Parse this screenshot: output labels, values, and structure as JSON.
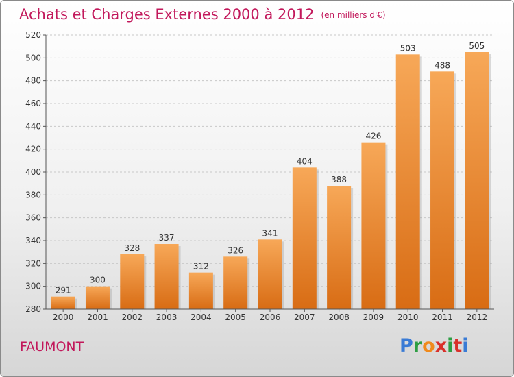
{
  "title": "Achats et Charges Externes 2000 à 2012",
  "subtitle": "(en milliers d'€)",
  "place": "FAUMONT",
  "brand": {
    "letters": [
      "P",
      "r",
      "o",
      "x",
      "i",
      "t",
      "i"
    ],
    "colors": [
      "#3a7bd5",
      "#2e9e44",
      "#f08a1c",
      "#d9302a",
      "#2e9e44",
      "#d9302a",
      "#3a7bd5"
    ]
  },
  "chart_data": {
    "type": "bar",
    "categories": [
      "2000",
      "2001",
      "2002",
      "2003",
      "2004",
      "2005",
      "2006",
      "2007",
      "2008",
      "2009",
      "2010",
      "2011",
      "2012"
    ],
    "values": [
      291,
      300,
      328,
      337,
      312,
      326,
      341,
      404,
      388,
      426,
      503,
      488,
      505
    ],
    "ylim": [
      280,
      520
    ],
    "yticks": [
      280,
      300,
      320,
      340,
      360,
      380,
      400,
      420,
      440,
      460,
      480,
      500,
      520
    ],
    "grid": true,
    "bar_color": "#f0902d",
    "title_color": "#c2185b"
  }
}
